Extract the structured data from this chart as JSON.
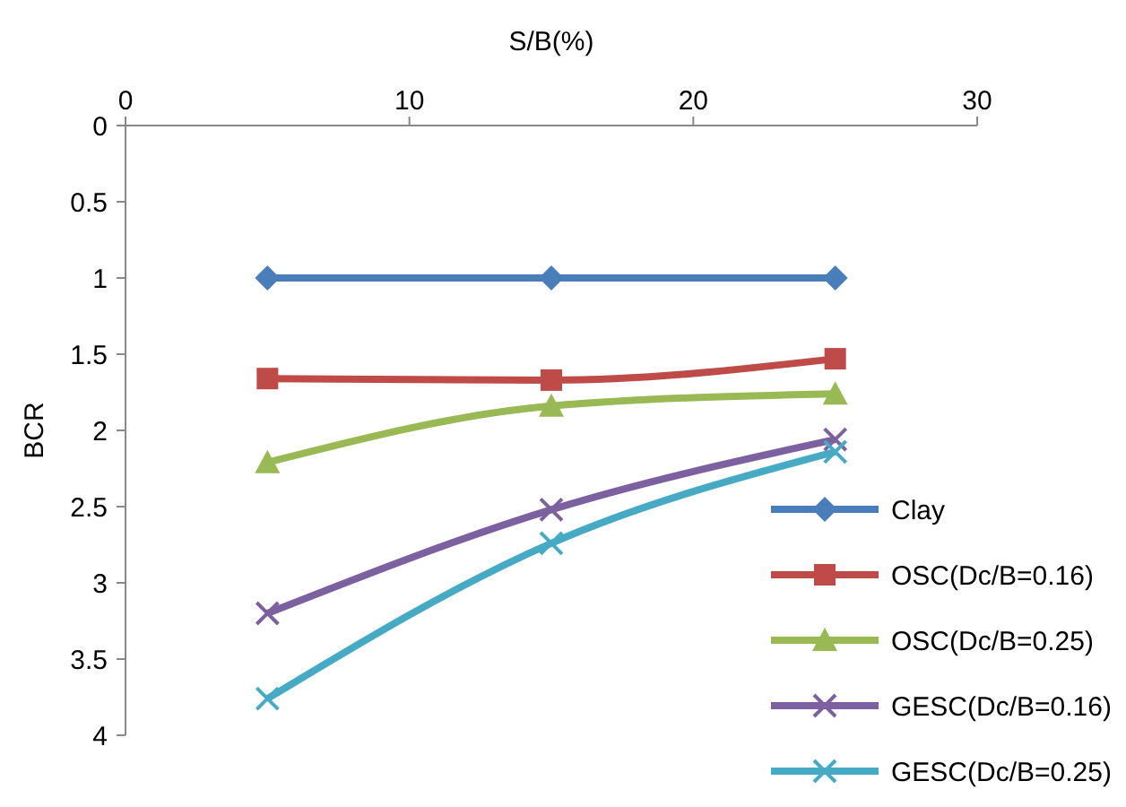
{
  "chart_data": {
    "type": "line",
    "xlabel": "S/B(%)",
    "ylabel": "BCR",
    "x": [
      5,
      15,
      25
    ],
    "xlim": [
      0,
      30
    ],
    "xticks": [
      0,
      10,
      20,
      30
    ],
    "ylim": [
      4,
      0
    ],
    "yticks": [
      0,
      0.5,
      1,
      1.5,
      2,
      2.5,
      3,
      3.5,
      4
    ],
    "grid": false,
    "legend": "bottom right",
    "series": [
      {
        "name": "Clay",
        "color": "#4a7ebb",
        "marker": "diamond",
        "values": [
          1,
          1,
          1
        ]
      },
      {
        "name": "OSC(Dc/B=0.16)",
        "color": "#be4b48",
        "marker": "square",
        "values": [
          1.66,
          1.67,
          1.53
        ]
      },
      {
        "name": "OSC(Dc/B=0.25)",
        "color": "#98b954",
        "marker": "triangle",
        "values": [
          2.21,
          1.84,
          1.76
        ]
      },
      {
        "name": "GESC(Dc/B=0.16)",
        "color": "#7d60a0",
        "marker": "cross",
        "values": [
          3.2,
          2.52,
          2.06
        ]
      },
      {
        "name": "GESC(Dc/B=0.25)",
        "color": "#46aac5",
        "marker": "cross",
        "values": [
          3.76,
          2.74,
          2.14
        ]
      }
    ]
  }
}
